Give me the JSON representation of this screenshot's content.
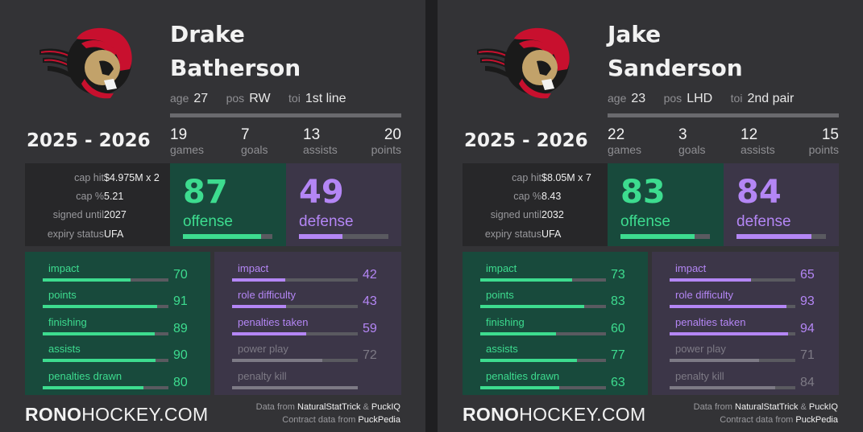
{
  "colors": {
    "background": "#333336",
    "offense": "#3ddc8f",
    "defense": "#b486f5",
    "muted": "#7d7a85",
    "offense_bg": "#184a3c",
    "defense_bg": "#3c3648",
    "contract_bg": "#272729"
  },
  "cards": [
    {
      "logo": "ottawa-senators-logo",
      "first_name": "Drake",
      "last_name": "Batherson",
      "bio": {
        "age_label": "age",
        "age": "27",
        "pos_label": "pos",
        "pos": "RW",
        "toi_label": "toi",
        "toi": "1st line"
      },
      "season": "2025 - 2026",
      "stats": [
        {
          "num": "19",
          "label": "games"
        },
        {
          "num": "7",
          "label": "goals"
        },
        {
          "num": "13",
          "label": "assists"
        },
        {
          "num": "20",
          "label": "points"
        }
      ],
      "contract": [
        {
          "label": "cap hit",
          "value": "$4.975M x 2"
        },
        {
          "label": "cap %",
          "value": "5.21"
        },
        {
          "label": "signed until",
          "value": "2027"
        },
        {
          "label": "expiry status",
          "value": "UFA"
        }
      ],
      "offense": {
        "value": "87",
        "label": "offense",
        "fill": 0.87
      },
      "defense": {
        "value": "49",
        "label": "defense",
        "fill": 0.49
      },
      "offense_metrics": [
        {
          "label": "impact",
          "value": "70",
          "pct": 0.7
        },
        {
          "label": "points",
          "value": "91",
          "pct": 0.91
        },
        {
          "label": "finishing",
          "value": "89",
          "pct": 0.89
        },
        {
          "label": "assists",
          "value": "90",
          "pct": 0.9
        },
        {
          "label": "penalties drawn",
          "value": "80",
          "pct": 0.8
        }
      ],
      "defense_metrics": [
        {
          "label": "impact",
          "value": "42",
          "pct": 0.42,
          "muted": false
        },
        {
          "label": "role difficulty",
          "value": "43",
          "pct": 0.43,
          "muted": false
        },
        {
          "label": "penalties taken",
          "value": "59",
          "pct": 0.59,
          "muted": false
        },
        {
          "label": "power play",
          "value": "72",
          "pct": 0.72,
          "muted": true
        },
        {
          "label": "penalty kill",
          "value": "",
          "pct": 1.0,
          "muted": true
        }
      ],
      "brand_bold": "RONO",
      "brand_rest": "HOCKEY.COM",
      "credit1_prefix": "Data from ",
      "credit1_a": "NaturalStatTrick",
      "credit1_mid": " & ",
      "credit1_b": "PuckIQ",
      "credit2_prefix": "Contract data from ",
      "credit2_a": "PuckPedia"
    },
    {
      "logo": "ottawa-senators-logo",
      "first_name": "Jake",
      "last_name": "Sanderson",
      "bio": {
        "age_label": "age",
        "age": "23",
        "pos_label": "pos",
        "pos": "LHD",
        "toi_label": "toi",
        "toi": "2nd pair"
      },
      "season": "2025 - 2026",
      "stats": [
        {
          "num": "22",
          "label": "games"
        },
        {
          "num": "3",
          "label": "goals"
        },
        {
          "num": "12",
          "label": "assists"
        },
        {
          "num": "15",
          "label": "points"
        }
      ],
      "contract": [
        {
          "label": "cap hit",
          "value": "$8.05M x 7"
        },
        {
          "label": "cap %",
          "value": "8.43"
        },
        {
          "label": "signed until",
          "value": "2032"
        },
        {
          "label": "expiry status",
          "value": "UFA"
        }
      ],
      "offense": {
        "value": "83",
        "label": "offense",
        "fill": 0.83
      },
      "defense": {
        "value": "84",
        "label": "defense",
        "fill": 0.84
      },
      "offense_metrics": [
        {
          "label": "impact",
          "value": "73",
          "pct": 0.73
        },
        {
          "label": "points",
          "value": "83",
          "pct": 0.83
        },
        {
          "label": "finishing",
          "value": "60",
          "pct": 0.6
        },
        {
          "label": "assists",
          "value": "77",
          "pct": 0.77
        },
        {
          "label": "penalties drawn",
          "value": "63",
          "pct": 0.63
        }
      ],
      "defense_metrics": [
        {
          "label": "impact",
          "value": "65",
          "pct": 0.65,
          "muted": false
        },
        {
          "label": "role difficulty",
          "value": "93",
          "pct": 0.93,
          "muted": false
        },
        {
          "label": "penalties taken",
          "value": "94",
          "pct": 0.94,
          "muted": false
        },
        {
          "label": "power play",
          "value": "71",
          "pct": 0.71,
          "muted": true
        },
        {
          "label": "penalty kill",
          "value": "84",
          "pct": 0.84,
          "muted": true
        }
      ],
      "brand_bold": "RONO",
      "brand_rest": "HOCKEY.COM",
      "credit1_prefix": "Data from ",
      "credit1_a": "NaturalStatTrick",
      "credit1_mid": " & ",
      "credit1_b": "PuckIQ",
      "credit2_prefix": "Contract data from ",
      "credit2_a": "PuckPedia"
    }
  ]
}
